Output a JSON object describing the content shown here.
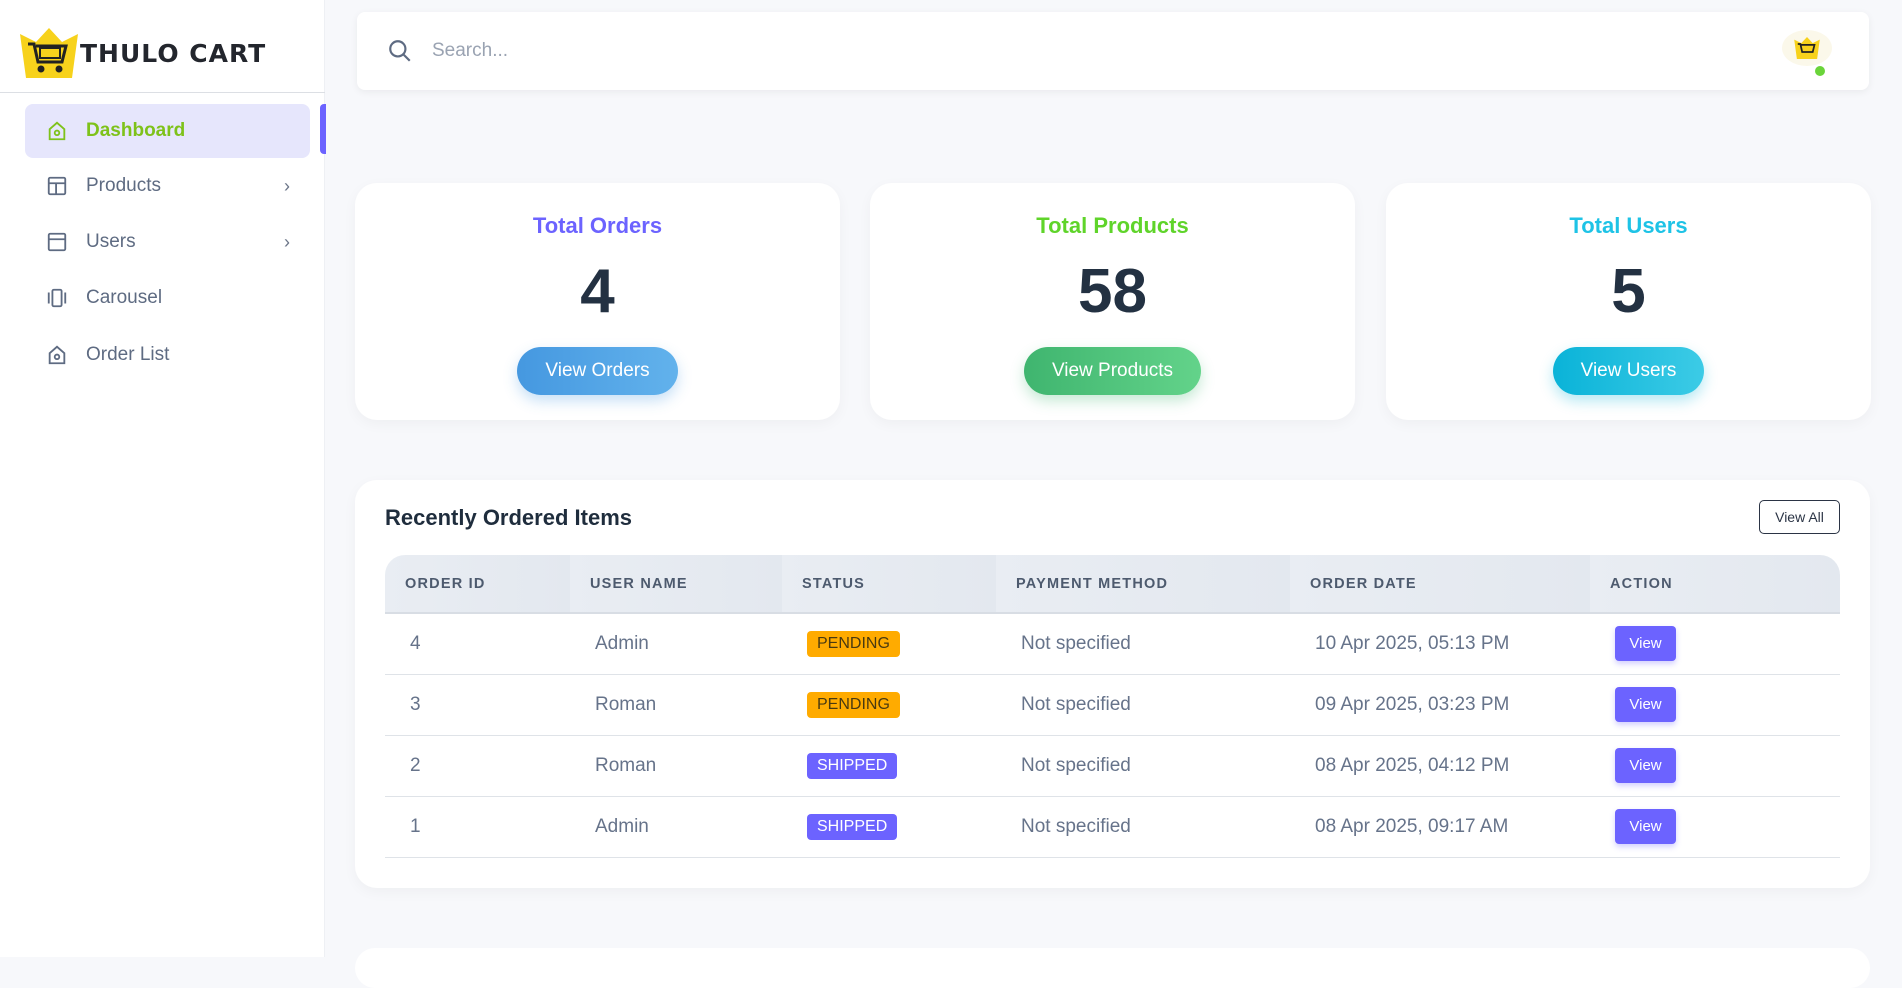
{
  "brand": {
    "name": "THULO CART"
  },
  "sidebar": {
    "items": [
      {
        "label": "Dashboard",
        "icon": "home-icon",
        "active": true
      },
      {
        "label": "Products",
        "icon": "layout-icon",
        "has_submenu": true
      },
      {
        "label": "Users",
        "icon": "window-icon",
        "has_submenu": true
      },
      {
        "label": "Carousel",
        "icon": "carousel-icon"
      },
      {
        "label": "Order List",
        "icon": "home-icon"
      }
    ],
    "chevron": "›"
  },
  "header": {
    "search_placeholder": "Search...",
    "status_color": "#6ad43a"
  },
  "stats": [
    {
      "title": "Total Orders",
      "value": "4",
      "button": "View Orders",
      "color": "#6c63ff"
    },
    {
      "title": "Total Products",
      "value": "58",
      "button": "View Products",
      "color": "#5fd42a"
    },
    {
      "title": "Total Users",
      "value": "5",
      "button": "View Users",
      "color": "#1ec3e6"
    }
  ],
  "recent": {
    "title": "Recently Ordered Items",
    "view_all": "View All",
    "columns": [
      "ORDER ID",
      "USER NAME",
      "STATUS",
      "PAYMENT METHOD",
      "ORDER DATE",
      "ACTION"
    ],
    "rows": [
      {
        "id": "4",
        "user": "Admin",
        "status": "PENDING",
        "payment": "Not specified",
        "date": "10 Apr 2025, 05:13 PM",
        "action": "View"
      },
      {
        "id": "3",
        "user": "Roman",
        "status": "PENDING",
        "payment": "Not specified",
        "date": "09 Apr 2025, 03:23 PM",
        "action": "View"
      },
      {
        "id": "2",
        "user": "Roman",
        "status": "SHIPPED",
        "payment": "Not specified",
        "date": "08 Apr 2025, 04:12 PM",
        "action": "View"
      },
      {
        "id": "1",
        "user": "Admin",
        "status": "SHIPPED",
        "payment": "Not specified",
        "date": "08 Apr 2025, 09:17 AM",
        "action": "View"
      }
    ]
  }
}
